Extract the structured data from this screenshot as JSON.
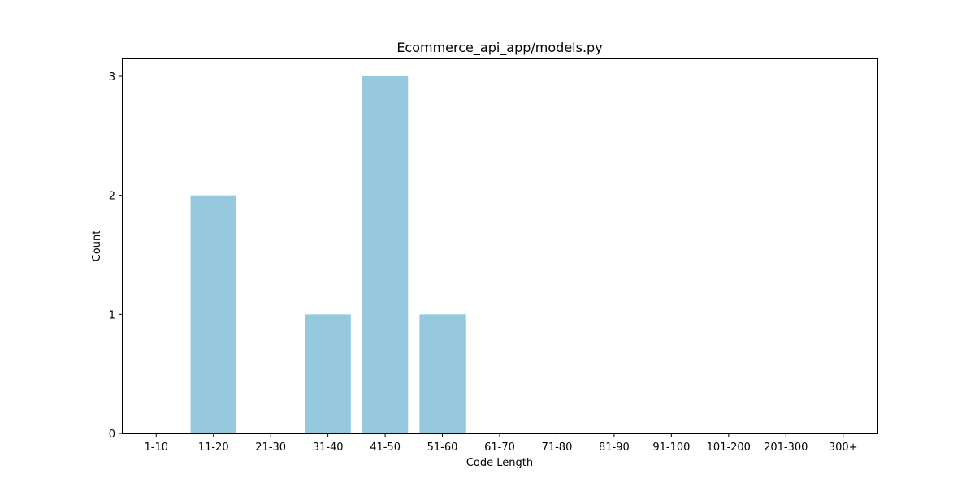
{
  "chart_data": {
    "type": "bar",
    "title": "Ecommerce_api_app/models.py",
    "xlabel": "Code Length",
    "ylabel": "Count",
    "categories": [
      "1-10",
      "11-20",
      "21-30",
      "31-40",
      "41-50",
      "51-60",
      "61-70",
      "71-80",
      "81-90",
      "91-100",
      "101-200",
      "201-300",
      "300+"
    ],
    "values": [
      0,
      2,
      0,
      1,
      3,
      1,
      0,
      0,
      0,
      0,
      0,
      0,
      0
    ],
    "yticks": [
      0,
      1,
      2,
      3
    ],
    "ylim": [
      0,
      3.15
    ],
    "bar_color": "#96c9dd",
    "grid": false,
    "legend": "none"
  }
}
